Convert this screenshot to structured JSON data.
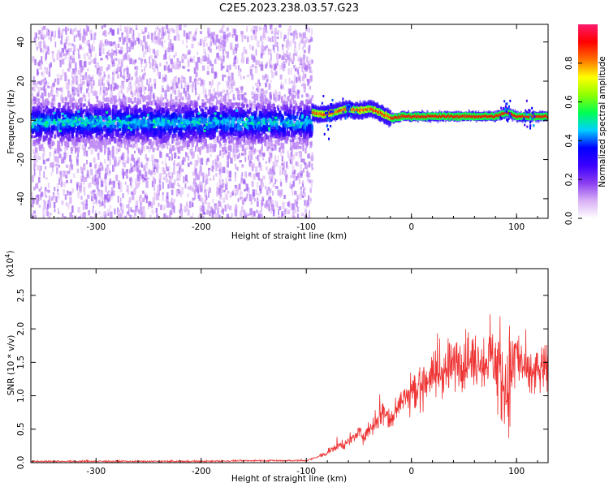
{
  "chart_data": [
    {
      "type": "heatmap",
      "title": "C2E5.2023.238.03.57.G23",
      "xlabel": "Height of straight line (km)",
      "ylabel": "Frequency (Hz)",
      "xlim": [
        -362,
        130
      ],
      "ylim": [
        -50,
        49
      ],
      "x_ticks": [
        -300,
        -200,
        -100,
        0,
        100
      ],
      "y_ticks": [
        -40,
        -20,
        0,
        20,
        40
      ],
      "colorbar": {
        "label": "Normalized spectral amplitude",
        "range": [
          0.0,
          1.0
        ],
        "ticks": [
          0.0,
          0.2,
          0.4,
          0.6,
          0.8
        ],
        "tick_labels": [
          "0.0",
          "0.2",
          "0.4",
          "0.6",
          "0.8"
        ],
        "colormap": [
          "#ffffff",
          "#d8b0f6",
          "#8a3ef0",
          "#3b00ff",
          "#0000ff",
          "#00d0ff",
          "#00ff50",
          "#90ff00",
          "#ffff00",
          "#ff7000",
          "#ff0000",
          "#ff1a6c"
        ]
      },
      "ridge": [
        {
          "x": -95,
          "y": 4
        },
        {
          "x": -85,
          "y": 3
        },
        {
          "x": -75,
          "y": 4
        },
        {
          "x": -62,
          "y": 6
        },
        {
          "x": -50,
          "y": 5
        },
        {
          "x": -40,
          "y": 6
        },
        {
          "x": -30,
          "y": 4
        },
        {
          "x": -20,
          "y": 1
        },
        {
          "x": -10,
          "y": 2
        },
        {
          "x": 0,
          "y": 2
        },
        {
          "x": 40,
          "y": 2
        },
        {
          "x": 80,
          "y": 2
        },
        {
          "x": 90,
          "y": 4
        },
        {
          "x": 100,
          "y": 2
        },
        {
          "x": 130,
          "y": 2
        }
      ]
    },
    {
      "type": "line",
      "xlabel": "Height of straight line (km)",
      "ylabel": "SNR (10 * v/v)",
      "y_multiplier": "(x10",
      "y_multiplier_exp": "4",
      "y_multiplier_close": ")",
      "xlim": [
        -362,
        130
      ],
      "ylim": [
        0,
        2.9
      ],
      "x_ticks": [
        -300,
        -200,
        -100,
        0,
        100
      ],
      "y_ticks": [
        0.0,
        0.5,
        1.0,
        1.5,
        2.0,
        2.5
      ],
      "y_tick_labels": [
        "0.0",
        "0.5",
        "1.0",
        "1.5",
        "2.0",
        "2.5"
      ],
      "series": [
        {
          "color": "#ee3333",
          "x": [
            -362,
            -300,
            -250,
            -200,
            -150,
            -110,
            -100,
            -90,
            -80,
            -70,
            -60,
            -50,
            -45,
            -40,
            -35,
            -30,
            -25,
            -20,
            -15,
            -10,
            -5,
            0,
            5,
            10,
            20,
            30,
            40,
            50,
            60,
            70,
            75,
            80,
            85,
            90,
            95,
            100,
            105,
            110,
            120,
            130
          ],
          "y": [
            0.02,
            0.02,
            0.02,
            0.02,
            0.03,
            0.03,
            0.03,
            0.08,
            0.15,
            0.25,
            0.3,
            0.45,
            0.4,
            0.5,
            0.6,
            0.7,
            0.8,
            0.6,
            0.85,
            0.9,
            1.0,
            1.1,
            1.0,
            1.2,
            1.3,
            1.35,
            1.45,
            1.55,
            1.5,
            1.55,
            1.6,
            1.5,
            1.3,
            1.1,
            1.4,
            1.6,
            1.5,
            1.3,
            1.35,
            1.4
          ]
        }
      ]
    }
  ]
}
